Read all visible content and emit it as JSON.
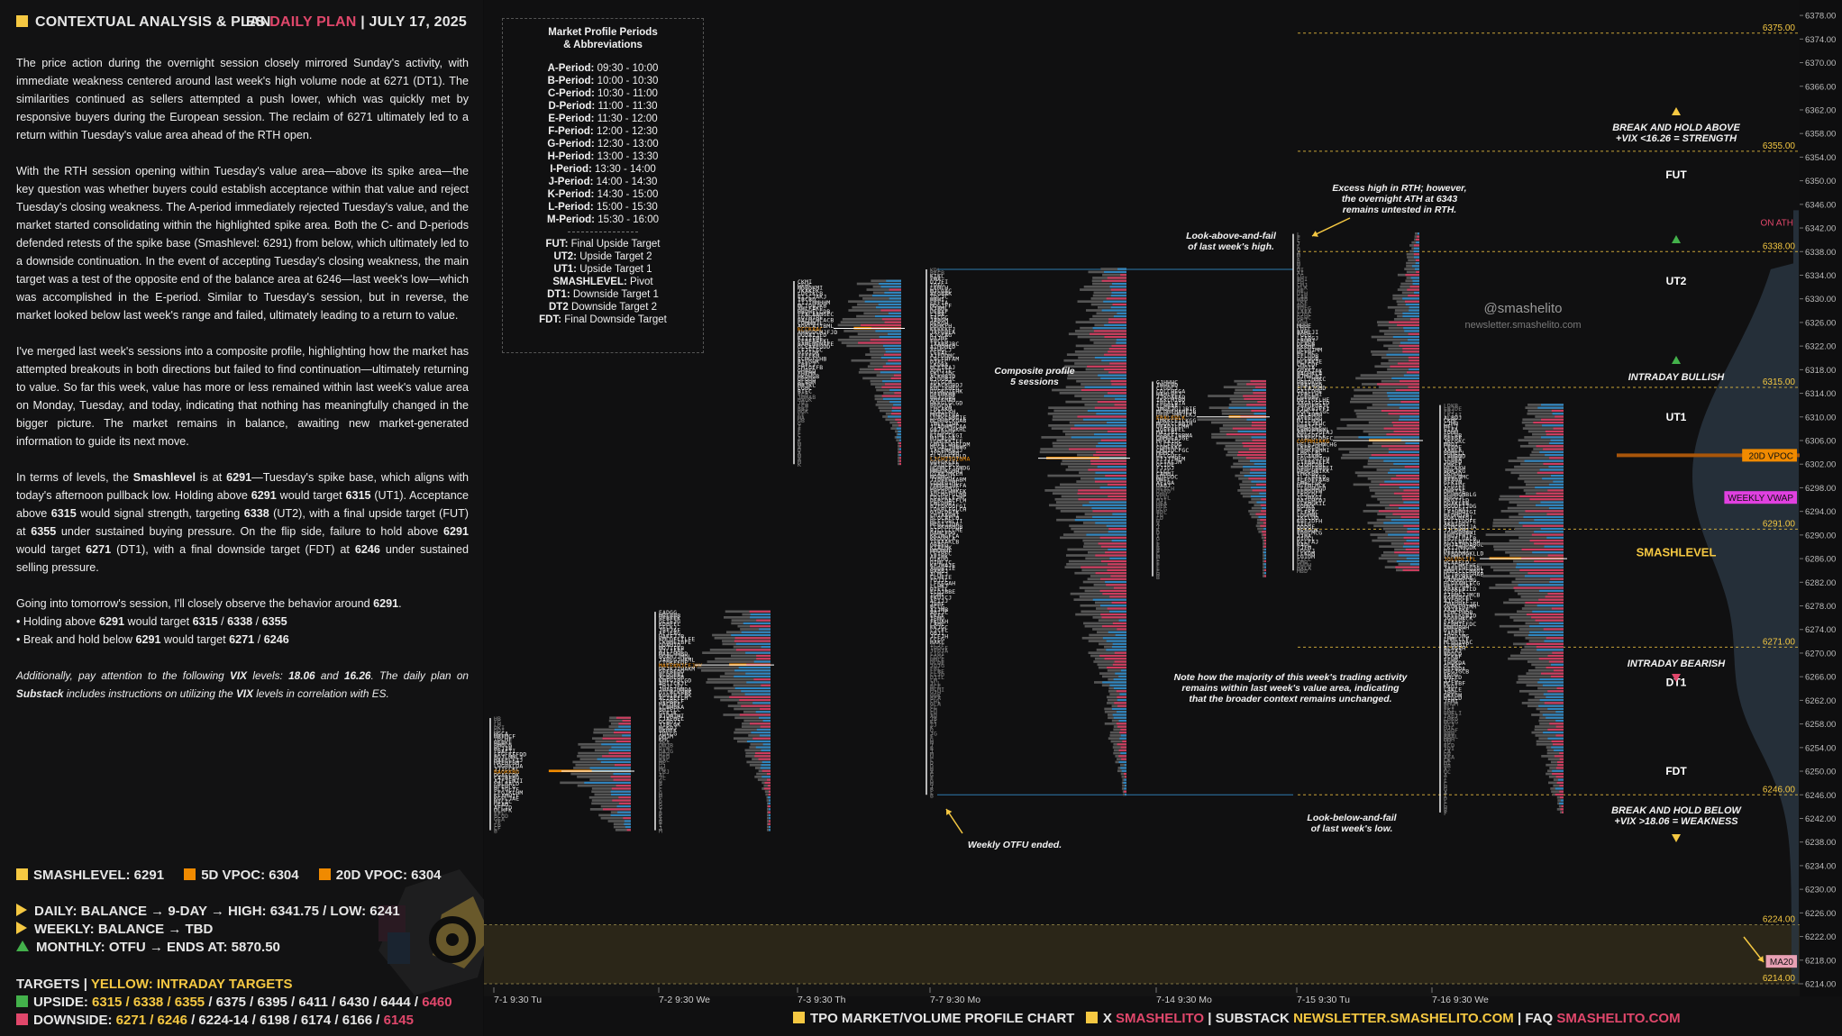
{
  "header": {
    "title": "CONTEXTUAL ANALYSIS & PLAN",
    "plan_prefix": "ES",
    "plan_word": "DAILY PLAN",
    "sep": "|",
    "date": "JULY 17, 2025"
  },
  "body": {
    "p1": "The price action during the overnight session closely mirrored Sunday's activity, with immediate weakness centered around last week's high volume node at 6271 (DT1). The similarities continued as sellers attempted a push lower, which was quickly met by responsive buyers during the European session. The reclaim of 6271 ultimately led to a return within Tuesday's value area ahead of the RTH open.",
    "p2": "With the RTH session opening within Tuesday's value area—above its spike area—the key question was whether buyers could establish acceptance within that value and reject Tuesday's closing weakness. The A-period immediately rejected Tuesday's value, and the market started consolidating within the highlighted spike area. Both the C- and D-periods defended retests of the spike base (Smashlevel: 6291) from below, which ultimately led to a downside continuation. In the event of accepting Tuesday's closing weakness, the main target was a test of the opposite end of the balance area at 6246—last week's low—which was accomplished in the E-period. Similar to Tuesday's session, but in reverse, the market looked below last week's range and failed, ultimately leading to a return to value.",
    "p3": "I've merged last week's sessions into a composite profile, highlighting how the market has attempted breakouts in both directions but failed to find continuation—ultimately returning to value. So far this week, value has more or less remained within last week's value area on Monday, Tuesday, and today, indicating that nothing has meaningfully changed in the bigger picture. The market remains in balance, awaiting new market-generated information to guide its next move.",
    "p4": "In terms of levels, the Smashlevel is at 6291—Tuesday's spike base, which aligns with today's afternoon pullback low. Holding above 6291 would target 6315 (UT1). Acceptance above 6315 would signal strength, targeting 6338 (UT2), with a final upside target (FUT) at 6355 under sustained buying pressure. On the flip side, failure to hold above 6291 would target 6271 (DT1), with a final downside target (FDT) at 6246 under sustained selling pressure.",
    "p5a": "Going into tomorrow's session, I'll closely observe the behavior around 6291.",
    "p5b": "• Holding above 6291 would target 6315 / 6338 / 6355",
    "p5c": "• Break and hold below 6291 would target 6271 / 6246",
    "p6": "Additionally, pay attention to the following VIX levels: 18.06 and 16.26. The daily plan on Substack includes instructions on utilizing the VIX levels in correlation with ES."
  },
  "levels": {
    "smashlevel": "SMASHLEVEL: 6291",
    "vpoc5d": "5D VPOC: 6304",
    "vpoc20d": "20D VPOC: 6304"
  },
  "status": {
    "daily": "DAILY: BALANCE → 9-DAY → HIGH: 6341.75 / LOW: 6241",
    "weekly": "WEEKLY: BALANCE → TBD",
    "monthly": "MONTHLY: OTFU → ENDS AT: 5870.50"
  },
  "targets": {
    "title": "TARGETS",
    "sep": "|",
    "yellow_note": "YELLOW: INTRADAY TARGETS",
    "upside_label": "UPSIDE:",
    "upside_yellow": "6315 / 6338 / 6355",
    "upside_rest": "/ 6375 / 6395 / 6411 / 6430 / 6444 /",
    "upside_last": "6460",
    "downside_label": "DOWNSIDE:",
    "downside_yellow": "6271 / 6246",
    "downside_rest": "/ 6224-14 / 6198 / 6174 / 6166 /",
    "downside_last": "6145"
  },
  "legend": {
    "title1": "Market Profile Periods",
    "title2": "& Abbreviations",
    "periods": [
      [
        "A-Period:",
        "09:30 - 10:00"
      ],
      [
        "B-Period:",
        "10:00 - 10:30"
      ],
      [
        "C-Period:",
        "10:30 - 11:00"
      ],
      [
        "D-Period:",
        "11:00 - 11:30"
      ],
      [
        "E-Period:",
        "11:30 - 12:00"
      ],
      [
        "F-Period:",
        "12:00 - 12:30"
      ],
      [
        "G-Period:",
        "12:30 - 13:00"
      ],
      [
        "H-Period:",
        "13:00 - 13:30"
      ],
      [
        "I-Period:",
        "13:30 - 14:00"
      ],
      [
        "J-Period:",
        "14:00 - 14:30"
      ],
      [
        "K-Period:",
        "14:30 - 15:00"
      ],
      [
        "L-Period:",
        "15:00 - 15:30"
      ],
      [
        "M-Period:",
        "15:30 - 16:00"
      ]
    ],
    "abbr": [
      [
        "FUT:",
        "Final Upside Target"
      ],
      [
        "UT2:",
        "Upside Target 2"
      ],
      [
        "UT1:",
        "Upside Target 1"
      ],
      [
        "SMASHLEVEL:",
        "Pivot"
      ],
      [
        "DT1:",
        "Downside Target 1"
      ],
      [
        "DT2",
        "Downside Target 2"
      ],
      [
        "FDT:",
        "Final Downside Target"
      ]
    ]
  },
  "footer": {
    "chart_type": "TPO MARKET/VOLUME PROFILE CHART",
    "x_label": "X",
    "x_handle": "SMASHELITO",
    "sep": "|",
    "substack_label": "SUBSTACK",
    "substack_url": "NEWSLETTER.SMASHELITO.COM",
    "faq_label": "FAQ",
    "faq_url": "SMASHELITO.COM"
  },
  "annotations": {
    "look_above": [
      "Look-above-and-fail",
      "of last week's high."
    ],
    "excess": [
      "Excess high in RTH; however,",
      "the overnight ATH at 6343",
      "remains untested in RTH."
    ],
    "composite": [
      "Composite profile",
      "5 sessions"
    ],
    "note": [
      "Note how the majority of this week's trading activity",
      "remains within last week's value area, indicating",
      "that the broader context remains unchanged."
    ],
    "look_below": [
      "Look-below-and-fail",
      "of last week's low."
    ],
    "otfu": "Weekly OTFU ended.",
    "handle": "@smashelito",
    "site": "newsletter.smashelito.com",
    "break_above": [
      "BREAK AND HOLD ABOVE",
      "+VIX <16.26 = STRENGTH"
    ],
    "break_below": [
      "BREAK AND HOLD BELOW",
      "+VIX >18.06 = WEAKNESS"
    ],
    "intraday_bullish": "INTRADAY BULLISH",
    "intraday_bearish": "INTRADAY BEARISH"
  },
  "chart_data": {
    "type": "bar",
    "subtype": "tpo-volume-profile",
    "y_axis": {
      "min": 6214,
      "max": 6380,
      "step": 4,
      "position": "right"
    },
    "x_ticks": [
      "7-1  9:30 Tu",
      "7-2  9:30 We",
      "7-3  9:30 Th",
      "7-7  9:30 Mo",
      "7-14  9:30 Mo",
      "7-15  9:30 Tu",
      "7-16  9:30 We"
    ],
    "levels": [
      {
        "name": "FUT",
        "price": 6355.0,
        "label": "6355.00"
      },
      {
        "name": "UT2",
        "price": 6338.0,
        "label": "6338.00"
      },
      {
        "name": "UT1",
        "price": 6315.0,
        "label": "6315.00"
      },
      {
        "name": "SMASHLEVEL",
        "price": 6291.0,
        "label": "6291.00"
      },
      {
        "name": "DT1",
        "price": 6271.0,
        "label": "6271.00"
      },
      {
        "name": "FDT",
        "price": 6246.0,
        "label": "6246.00"
      },
      {
        "name": "",
        "price": 6375.0,
        "label": "6375.00"
      },
      {
        "name": "",
        "price": 6224.0,
        "label": "6224.00"
      },
      {
        "name": "",
        "price": 6214.0,
        "label": "6214.00"
      }
    ],
    "markers": [
      {
        "label": "ON ATH",
        "price": 6343.0,
        "value": "6343.00",
        "color": "#e0476b"
      },
      {
        "label": "20D VPOC",
        "price": 6303.5,
        "value": "6303.50",
        "color": "#f08a00"
      },
      {
        "label": "",
        "price": 6299.75,
        "value": "6299.75",
        "color": "#f5c842"
      },
      {
        "label": "WEEKLY VWAP",
        "price": 6296.36,
        "value": "6296.36",
        "color": "#e040e0"
      },
      {
        "label": "",
        "price": 6281.0,
        "value": "6281.00",
        "color": "#ffffff"
      },
      {
        "label": "",
        "price": 6271.0,
        "value": "6271.00",
        "color": "#ffffff"
      },
      {
        "label": "MA20",
        "price": 6217.79,
        "value": "6217.79",
        "color": "#e0476b"
      }
    ],
    "sessions": [
      {
        "label": "7-1",
        "low": 6240,
        "high": 6259,
        "vpoc": 6250
      },
      {
        "label": "7-2",
        "low": 6240,
        "high": 6277,
        "vpoc": 6268
      },
      {
        "label": "7-3",
        "low": 6302,
        "high": 6333,
        "vpoc": 6325
      },
      {
        "label": "7-7 composite",
        "low": 6246,
        "high": 6335,
        "vpoc": 6303
      },
      {
        "label": "7-14",
        "low": 6283,
        "high": 6316,
        "vpoc": 6310
      },
      {
        "label": "7-15",
        "low": 6284,
        "high": 6341,
        "vpoc": 6306
      },
      {
        "label": "7-16",
        "low": 6243,
        "high": 6312,
        "vpoc": 6286
      }
    ]
  }
}
